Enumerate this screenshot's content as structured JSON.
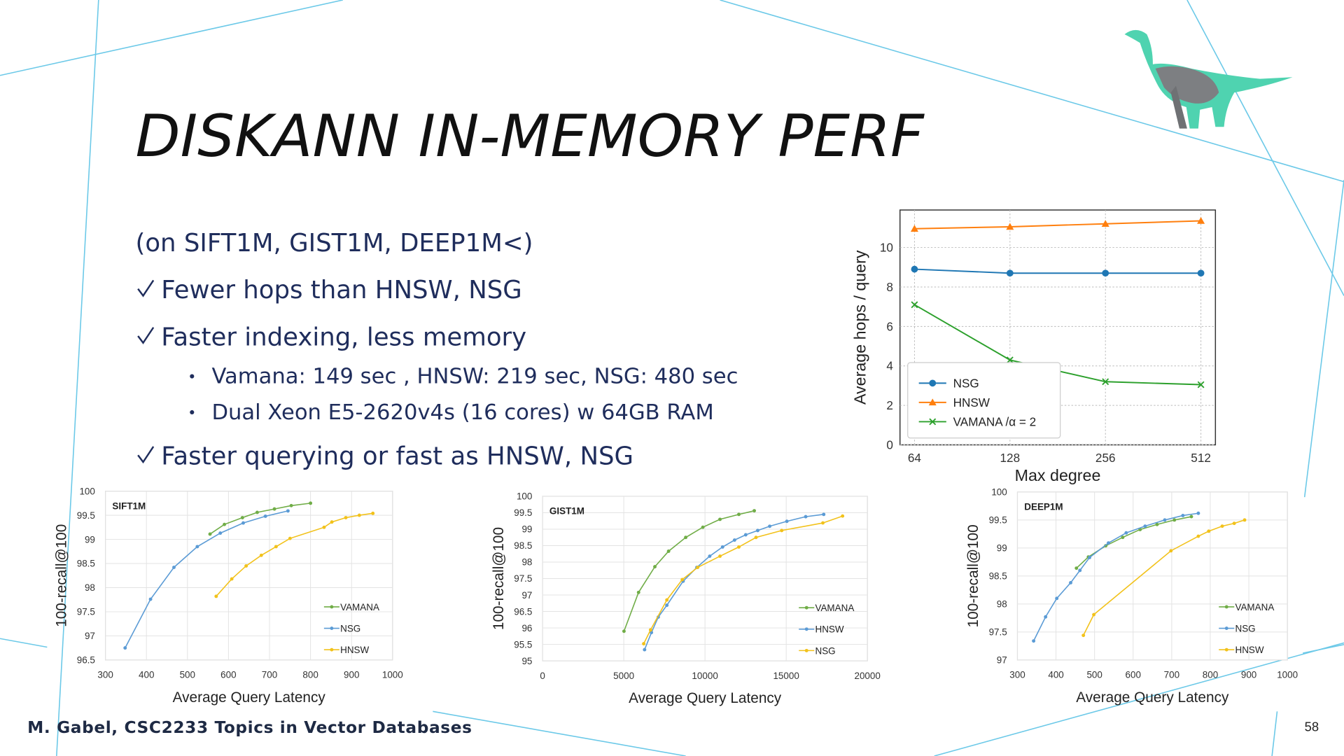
{
  "slide": {
    "title": "DISKANN IN-MEMORY PERF",
    "intro": "(on SIFT1M, GIST1M, DEEP1M<)",
    "checks": [
      "Fewer hops than HNSW, NSG",
      "Faster indexing, less memory",
      "Faster querying or fast as HNSW, NSG"
    ],
    "sub_bullets": [
      "Vamana: 149 sec , HNSW: 219 sec, NSG: 480 sec",
      "Dual Xeon E5-2620v4s (16 cores) w 64GB RAM"
    ],
    "footer": "M. Gabel, CSC2233 Topics in Vector Databases",
    "page_number": 58
  },
  "chart_data": [
    {
      "type": "line",
      "x_label": "Max degree",
      "y_label": "Average hops / query",
      "categories": [
        "64",
        "128",
        "256",
        "512"
      ],
      "ylim": [
        0,
        11.9
      ],
      "yticks": [
        0,
        2,
        4,
        6,
        8,
        10
      ],
      "grid": true,
      "legend": "lower left",
      "series": [
        {
          "name": "NSG",
          "color": "#1f77b4",
          "marker": "o",
          "values": [
            8.9,
            8.7,
            8.7,
            8.7
          ]
        },
        {
          "name": "HNSW",
          "color": "#ff7f0e",
          "marker": "^",
          "values": [
            10.95,
            11.05,
            11.2,
            11.35
          ]
        },
        {
          "name": "VAMANA /α = 2",
          "color": "#2ca02c",
          "marker": "x",
          "values": [
            7.1,
            4.3,
            3.2,
            3.05
          ]
        }
      ]
    },
    {
      "type": "line",
      "title": "SIFT1M",
      "x_label": "Average Query Latency",
      "y_label": "100-recall@100",
      "xlim": [
        300,
        1000
      ],
      "xticks": [
        300,
        400,
        500,
        600,
        700,
        800,
        900,
        1000
      ],
      "ylim": [
        96.5,
        100
      ],
      "yticks": [
        96.5,
        97,
        97.5,
        98,
        98.5,
        99,
        99.5,
        100
      ],
      "grid": true,
      "legend": "lower right",
      "series": [
        {
          "name": "VAMANA",
          "color": "#70ad47",
          "x": [
            555,
            590,
            634,
            670,
            712,
            753,
            800
          ],
          "values": [
            99.11,
            99.31,
            99.45,
            99.56,
            99.63,
            99.7,
            99.75
          ]
        },
        {
          "name": "NSG",
          "color": "#5b9bd5",
          "x": [
            348,
            410,
            467,
            524,
            580,
            636,
            690,
            745
          ],
          "values": [
            96.75,
            97.76,
            98.42,
            98.85,
            99.13,
            99.34,
            99.48,
            99.59
          ]
        },
        {
          "name": "HNSW",
          "color": "#f2c21b",
          "x": [
            570,
            608,
            643,
            680,
            716,
            750,
            833,
            852,
            886,
            919,
            952
          ],
          "values": [
            97.82,
            98.18,
            98.45,
            98.67,
            98.85,
            99.02,
            99.25,
            99.36,
            99.45,
            99.5,
            99.54
          ]
        }
      ]
    },
    {
      "type": "line",
      "title": "GIST1M",
      "x_label": "Average Query Latency",
      "y_label": "100-recall@100",
      "xlim": [
        0,
        20000
      ],
      "xticks": [
        0,
        5000,
        10000,
        15000,
        20000
      ],
      "ylim": [
        95,
        100
      ],
      "yticks": [
        95,
        95.5,
        96,
        96.5,
        97,
        97.5,
        98,
        98.5,
        99,
        99.5,
        100
      ],
      "grid": true,
      "legend": "lower right",
      "series": [
        {
          "name": "VAMANA",
          "color": "#70ad47",
          "x": [
            5013,
            5910,
            6913,
            7757,
            8813,
            9868,
            10923,
            12084,
            13034
          ],
          "values": [
            95.9,
            97.08,
            97.86,
            98.33,
            98.75,
            99.06,
            99.3,
            99.45,
            99.56
          ]
        },
        {
          "name": "HNSW",
          "color": "#5b9bd5",
          "x": [
            6280,
            6702,
            7124,
            7652,
            8654,
            9499,
            10290,
            11082,
            11821,
            12507,
            13245,
            13984,
            15040,
            16200,
            17309
          ],
          "values": [
            95.34,
            95.86,
            96.33,
            96.69,
            97.42,
            97.84,
            98.18,
            98.46,
            98.67,
            98.83,
            98.96,
            99.09,
            99.24,
            99.38,
            99.45
          ]
        },
        {
          "name": "NSG",
          "color": "#f2c21b",
          "x": [
            6227,
            6649,
            7652,
            8602,
            9551,
            10923,
            12084,
            13140,
            14723,
            17256,
            18470
          ],
          "values": [
            95.52,
            95.94,
            96.85,
            97.47,
            97.84,
            98.18,
            98.46,
            98.75,
            98.96,
            99.19,
            99.4
          ]
        }
      ]
    },
    {
      "type": "line",
      "title": "DEEP1M",
      "x_label": "Average Query Latency",
      "y_label": "100-recall@100",
      "xlim": [
        300,
        1000
      ],
      "xticks": [
        300,
        400,
        500,
        600,
        700,
        800,
        900,
        1000
      ],
      "ylim": [
        97,
        100
      ],
      "yticks": [
        97,
        97.5,
        98,
        98.5,
        99,
        99.5,
        100
      ],
      "grid": true,
      "legend": "lower right",
      "series": [
        {
          "name": "VAMANA",
          "color": "#70ad47",
          "x": [
            453,
            484,
            529,
            573,
            618,
            662,
            707,
            751
          ],
          "values": [
            98.64,
            98.84,
            99.04,
            99.19,
            99.33,
            99.42,
            99.5,
            99.56
          ]
        },
        {
          "name": "NSG",
          "color": "#5b9bd5",
          "x": [
            342,
            373,
            402,
            438,
            462,
            487,
            536,
            582,
            631,
            682,
            729,
            769
          ],
          "values": [
            97.34,
            97.77,
            98.1,
            98.38,
            98.6,
            98.83,
            99.09,
            99.27,
            99.39,
            99.5,
            99.58,
            99.62
          ]
        },
        {
          "name": "HNSW",
          "color": "#f2c21b",
          "x": [
            471,
            498,
            698,
            769,
            796,
            831,
            862,
            889
          ],
          "values": [
            97.44,
            97.81,
            98.95,
            99.21,
            99.3,
            99.39,
            99.44,
            99.5
          ]
        }
      ]
    }
  ]
}
